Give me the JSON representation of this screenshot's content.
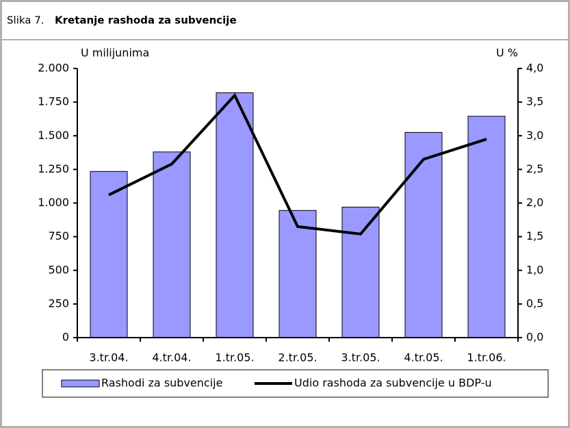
{
  "chart_data": {
    "type": "bar_line",
    "figure_label": "Slika 7.",
    "title": "Kretanje rashoda za subvencije",
    "y_label": "U milijunima",
    "y2_label": "U %",
    "categories": [
      "3.tr.04.",
      "4.tr.04.",
      "1.tr.05.",
      "2.tr.05.",
      "3.tr.05.",
      "4.tr.05.",
      "1.tr.06."
    ],
    "series": [
      {
        "name": "Rashodi za subvencije",
        "color": "#9999ff",
        "type": "bar",
        "values": [
          1235,
          1380,
          1820,
          945,
          970,
          1525,
          1645
        ]
      },
      {
        "name": "Udio rashoda za subvencije u BDP-u",
        "color": "#000000",
        "type": "line",
        "axis": "y2",
        "values": [
          2.12,
          2.58,
          3.6,
          1.65,
          1.54,
          2.65,
          2.95
        ]
      }
    ],
    "ylim": [
      0,
      2000
    ],
    "yticks": [
      0,
      250,
      500,
      750,
      {
        "value": 1000,
        "label": "1.000"
      },
      {
        "value": 1250,
        "label": "1.250"
      },
      {
        "value": 1500,
        "label": "1.500"
      },
      {
        "value": 1750,
        "label": "1.750"
      },
      {
        "value": 2000,
        "label": "2.000"
      }
    ],
    "y2lim": [
      0,
      4
    ],
    "y2ticks": [
      {
        "value": 0,
        "label": "0,0"
      },
      {
        "value": 0.5,
        "label": "0,5"
      },
      {
        "value": 1,
        "label": "1,0"
      },
      {
        "value": 1.5,
        "label": "1,5"
      },
      {
        "value": 2,
        "label": "2,0"
      },
      {
        "value": 2.5,
        "label": "2,5"
      },
      {
        "value": 3,
        "label": "3,0"
      },
      {
        "value": 3.5,
        "label": "3,5"
      },
      {
        "value": 4,
        "label": "4,0"
      }
    ],
    "grid": false,
    "legend": "bottom"
  }
}
